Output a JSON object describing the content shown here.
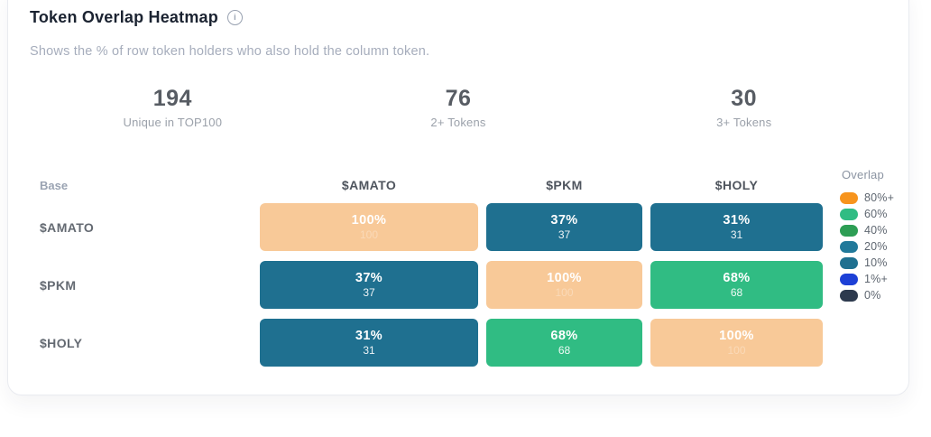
{
  "card": {
    "title": "Token Overlap Heatmap",
    "subtitle": "Shows the % of row token holders who also hold the column token.",
    "info_icon_glyph": "i"
  },
  "stats": [
    {
      "value": "194",
      "label": "Unique in TOP100"
    },
    {
      "value": "76",
      "label": "2+ Tokens"
    },
    {
      "value": "30",
      "label": "3+ Tokens"
    }
  ],
  "heatmap": {
    "base_label": "Base",
    "columns": [
      "$AMATO",
      "$PKM",
      "$HOLY"
    ],
    "rows": [
      {
        "label": "$AMATO",
        "cells": [
          {
            "pct": "100%",
            "count": "100",
            "bucket": "diag"
          },
          {
            "pct": "37%",
            "count": "37",
            "bucket": "teal"
          },
          {
            "pct": "31%",
            "count": "31",
            "bucket": "teal"
          }
        ]
      },
      {
        "label": "$PKM",
        "cells": [
          {
            "pct": "37%",
            "count": "37",
            "bucket": "teal"
          },
          {
            "pct": "100%",
            "count": "100",
            "bucket": "diag"
          },
          {
            "pct": "68%",
            "count": "68",
            "bucket": "green"
          }
        ]
      },
      {
        "label": "$HOLY",
        "cells": [
          {
            "pct": "31%",
            "count": "31",
            "bucket": "teal"
          },
          {
            "pct": "68%",
            "count": "68",
            "bucket": "green"
          },
          {
            "pct": "100%",
            "count": "100",
            "bucket": "diag"
          }
        ]
      }
    ]
  },
  "legend": {
    "title": "Overlap",
    "items": [
      {
        "label": "80%+",
        "color": "#f7941d"
      },
      {
        "label": "60%",
        "color": "#30bc83"
      },
      {
        "label": "40%",
        "color": "#2d9e54"
      },
      {
        "label": "20%",
        "color": "#21799a"
      },
      {
        "label": "10%",
        "color": "#1f7090"
      },
      {
        "label": "1%+",
        "color": "#1d40d6"
      },
      {
        "label": "0%",
        "color": "#2d3a4e"
      }
    ]
  },
  "colors": {
    "cell_teal": "#1f7090",
    "cell_green": "#30bc83",
    "cell_diagonal": "#f8c998",
    "title_text": "#1b2331",
    "muted_text": "#a6adbc"
  },
  "chart_data": {
    "type": "heatmap",
    "title": "Token Overlap Heatmap",
    "subtitle": "Shows the % of row token holders who also hold the column token.",
    "rows": [
      "$AMATO",
      "$PKM",
      "$HOLY"
    ],
    "columns": [
      "$AMATO",
      "$PKM",
      "$HOLY"
    ],
    "values_pct": [
      [
        100,
        37,
        31
      ],
      [
        37,
        100,
        68
      ],
      [
        31,
        68,
        100
      ]
    ],
    "holder_counts": [
      [
        100,
        37,
        31
      ],
      [
        37,
        100,
        68
      ],
      [
        31,
        68,
        100
      ]
    ],
    "summary_stats": {
      "unique_in_top100": 194,
      "two_plus_tokens": 76,
      "three_plus_tokens": 30
    },
    "legend": {
      "title": "Overlap",
      "position": "right",
      "buckets": [
        "80%+",
        "60%",
        "40%",
        "20%",
        "10%",
        "1%+",
        "0%"
      ]
    }
  }
}
